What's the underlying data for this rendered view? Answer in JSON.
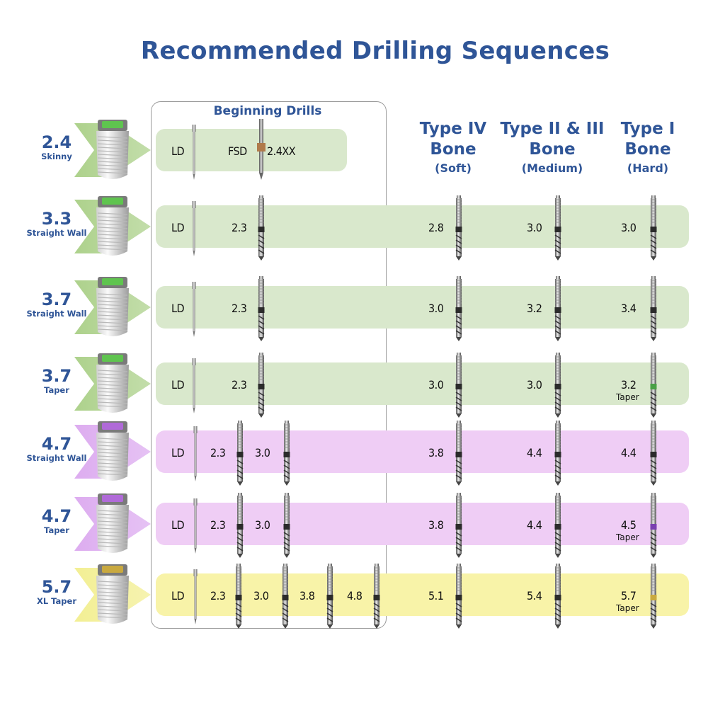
{
  "title": "Recommended Drilling Sequences",
  "beginning_drills_title": "Beginning Drills",
  "columns": [
    {
      "line1": "Type IV",
      "line2": "Bone",
      "line3": "(Soft)"
    },
    {
      "line1": "Type II & III",
      "line2": "Bone",
      "line3": "(Medium)"
    },
    {
      "line1": "Type I",
      "line2": "Bone",
      "line3": "(Hard)"
    }
  ],
  "colors": {
    "title": "#2f5597",
    "green": "#d9e8cc",
    "purple": "#efcdf5",
    "yellow": "#f8f3a8"
  },
  "rows": [
    {
      "size": "2.4",
      "sub": "Skinny",
      "color": "green",
      "begin": [
        "LD",
        "FSD",
        "2.4XX"
      ],
      "soft": "",
      "medium": "",
      "hard": "",
      "hard_sub": ""
    },
    {
      "size": "3.3",
      "sub": "Straight Wall",
      "color": "green",
      "begin": [
        "LD",
        "2.3"
      ],
      "soft": "2.8",
      "medium": "3.0",
      "hard": "3.0",
      "hard_sub": ""
    },
    {
      "size": "3.7",
      "sub": "Straight Wall",
      "color": "green",
      "begin": [
        "LD",
        "2.3"
      ],
      "soft": "3.0",
      "medium": "3.2",
      "hard": "3.4",
      "hard_sub": ""
    },
    {
      "size": "3.7",
      "sub": "Taper",
      "color": "green",
      "begin": [
        "LD",
        "2.3"
      ],
      "soft": "3.0",
      "medium": "3.0",
      "hard": "3.2",
      "hard_sub": "Taper"
    },
    {
      "size": "4.7",
      "sub": "Straight Wall",
      "color": "purple",
      "begin": [
        "LD",
        "2.3",
        "3.0"
      ],
      "soft": "3.8",
      "medium": "4.4",
      "hard": "4.4",
      "hard_sub": ""
    },
    {
      "size": "4.7",
      "sub": "Taper",
      "color": "purple",
      "begin": [
        "LD",
        "2.3",
        "3.0"
      ],
      "soft": "3.8",
      "medium": "4.4",
      "hard": "4.5",
      "hard_sub": "Taper"
    },
    {
      "size": "5.7",
      "sub": "XL Taper",
      "color": "yellow",
      "begin": [
        "LD",
        "2.3",
        "3.0",
        "3.8",
        "4.8"
      ],
      "soft": "5.1",
      "medium": "5.4",
      "hard": "5.7",
      "hard_sub": "Taper"
    }
  ]
}
